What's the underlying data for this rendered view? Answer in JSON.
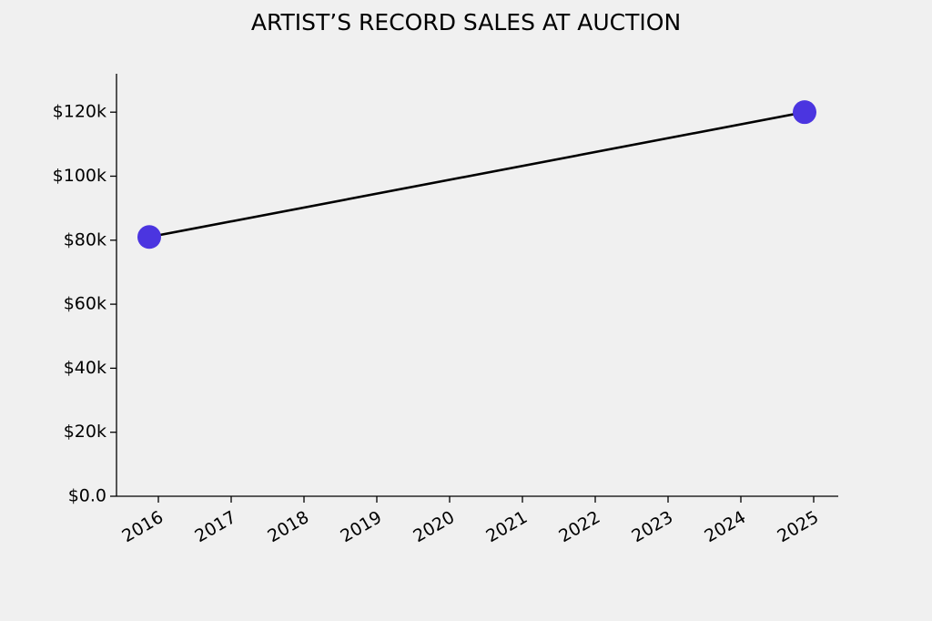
{
  "chart_data": {
    "type": "line",
    "title": "ARTIST’S RECORD SALES AT AUCTION",
    "x": [
      2015.875,
      2024.875
    ],
    "series": [
      {
        "values": [
          81000,
          120000
        ],
        "color": "#000000",
        "marker_color": "#4b35e0"
      }
    ],
    "xlim": [
      2015.425,
      2025.3375
    ],
    "xticks": [
      2016,
      2017,
      2018,
      2019,
      2020,
      2021,
      2022,
      2023,
      2024,
      2025
    ],
    "ylim": [
      0,
      132000
    ],
    "yticks": [
      {
        "value": 0,
        "label": "$0.0"
      },
      {
        "value": 20000,
        "label": "$20k"
      },
      {
        "value": 40000,
        "label": "$40k"
      },
      {
        "value": 60000,
        "label": "$60k"
      },
      {
        "value": 80000,
        "label": "$80k"
      },
      {
        "value": 100000,
        "label": "$100k"
      },
      {
        "value": 120000,
        "label": "$120k"
      }
    ],
    "grid": false
  }
}
